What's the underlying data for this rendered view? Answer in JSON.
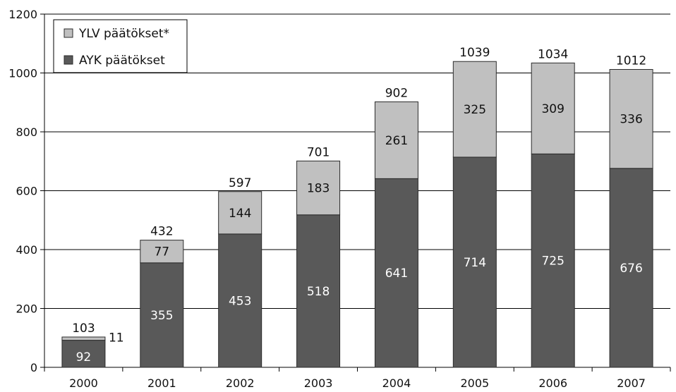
{
  "colors": {
    "ayk": "#595959",
    "ylv": "#c0c0c0",
    "bar_stroke": "#2b2b2b",
    "grid": "#000000",
    "axis": "#000000",
    "text_on_dark": "#ffffff",
    "text_on_light": "#111111"
  },
  "chart_data": {
    "type": "bar",
    "stacked": true,
    "categories": [
      "2000",
      "2001",
      "2002",
      "2003",
      "2004",
      "2005",
      "2006",
      "2007"
    ],
    "series": [
      {
        "name": "AYK päätökset",
        "color": "#595959",
        "values": [
          92,
          355,
          453,
          518,
          641,
          714,
          725,
          676
        ]
      },
      {
        "name": "YLV päätökset*",
        "color": "#c0c0c0",
        "values": [
          11,
          77,
          144,
          183,
          261,
          325,
          309,
          336
        ]
      }
    ],
    "totals": [
      103,
      432,
      597,
      701,
      902,
      1039,
      1034,
      1012
    ],
    "legend_order": [
      "YLV päätökset*",
      "AYK päätökset"
    ],
    "legend_position": "top-left",
    "yticks": [
      "0",
      "200",
      "400",
      "600",
      "800",
      "1000",
      "1200"
    ],
    "ylim": [
      0,
      1200
    ],
    "grid": true,
    "title": "",
    "xlabel": "",
    "ylabel": ""
  }
}
